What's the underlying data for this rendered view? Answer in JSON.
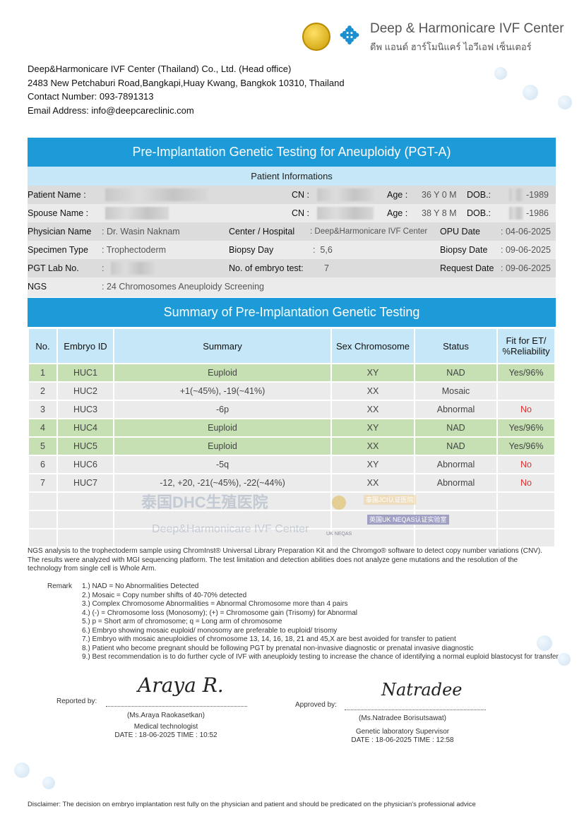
{
  "header": {
    "logo_en": "Deep & Harmonicare IVF Center",
    "logo_th": "ดีพ แอนด์ ฮาร์โมนิแคร์ ไอวีเอฟ เซ็นเตอร์",
    "address_lines": [
      "Deep&Harmonicare IVF Center (Thailand) Co., Ltd. (Head office)",
      "2483 New Petchaburi Road,Bangkapi,Huay Kwang, Bangkok 10310, Thailand",
      "Contact Number: 093-7891313",
      "Email Address: info@deepcareclinic.com"
    ]
  },
  "title": "Pre-Implantation Genetic Testing for Aneuploidy (PGT-A)",
  "patient_info": {
    "heading": "Patient Informations",
    "patient_name_label": "Patient Name :",
    "cn_label": "CN :",
    "age_label": "Age :",
    "dob_label": "DOB.:",
    "patient_age": "36 Y 0 M",
    "patient_dob": "-1989",
    "spouse_name_label": "Spouse Name :",
    "spouse_age": "38 Y 8 M",
    "spouse_dob": "-1986",
    "physician_label": "Physician Name",
    "physician": "Dr. Wasin Naknam",
    "center_label": "Center / Hospital",
    "center": "Deep&Harmonicare IVF Center",
    "opu_label": "OPU Date",
    "opu": "04-06-2025",
    "specimen_label": "Specimen Type",
    "specimen": "Trophectoderm",
    "biopsy_day_label": "Biopsy Day",
    "biopsy_day": "5,6",
    "biopsy_date_label": "Biopsy Date",
    "biopsy_date": "09-06-2025",
    "lab_label": "PGT Lab No.",
    "embryo_count_label": "No. of embryo test:",
    "embryo_count": "7",
    "request_label": "Request Date",
    "request_date": "09-06-2025",
    "ngs_label": "NGS",
    "ngs": "24 Chromosomes Aneuploidy Screening"
  },
  "summary": {
    "heading": "Summary of Pre-Implantation Genetic Testing",
    "columns": [
      "No.",
      "Embryo ID",
      "Summary",
      "Sex Chromosome",
      "Status",
      "Fit for ET/",
      "%Reliability"
    ],
    "rows": [
      {
        "no": "1",
        "id": "HUC1",
        "summary": "Euploid",
        "sex": "XY",
        "status": "NAD",
        "fit": "Yes/96%",
        "tone": "green"
      },
      {
        "no": "2",
        "id": "HUC2",
        "summary": "+1(~45%), -19(~41%)",
        "sex": "XX",
        "status": "Mosaic",
        "fit": "",
        "tone": "grey"
      },
      {
        "no": "3",
        "id": "HUC3",
        "summary": "-6p",
        "sex": "XX",
        "status": "Abnormal",
        "fit": "No",
        "tone": "grey"
      },
      {
        "no": "4",
        "id": "HUC4",
        "summary": "Euploid",
        "sex": "XY",
        "status": "NAD",
        "fit": "Yes/96%",
        "tone": "green"
      },
      {
        "no": "5",
        "id": "HUC5",
        "summary": "Euploid",
        "sex": "XX",
        "status": "NAD",
        "fit": "Yes/96%",
        "tone": "green"
      },
      {
        "no": "6",
        "id": "HUC6",
        "summary": "-5q",
        "sex": "XY",
        "status": "Abnormal",
        "fit": "No",
        "tone": "grey"
      },
      {
        "no": "7",
        "id": "HUC7",
        "summary": "-12, +20, -21(~45%), -22(~44%)",
        "sex": "XX",
        "status": "Abnormal",
        "fit": "No",
        "tone": "grey"
      }
    ],
    "empty_rows": 3
  },
  "colors": {
    "banner": "#1c9bd8",
    "header_light": "#c6e7f7",
    "euploid_row": "#c6e0b4",
    "grey_row": "#ebebeb",
    "no_text": "#dd3333"
  },
  "note": "NGS analysis to the trophectoderm sample using ChromInst® Universal Library Preparation Kit and the Chromgo® software to detect copy number variations (CNV). The results were analyzed with MGI sequencing platform. The test limitation and detection abilities does not analyze gene mutations and the resolution of the technology from single cell is Whole Arm.",
  "remark_label": "Remark",
  "remarks": [
    "1.) NAD = No Abnormalities Detected",
    "2.) Mosaic = Copy number shifts of 40-70% detected",
    "3.) Complex Chromosome Abnormalities = Abnormal Chromosome more than 4 pairs",
    "4.) (-) = Chromosome loss (Monosomy); (+) = Chromosome gain (Trisomy) for Abnormal",
    "5.) p = Short arm of chromosome; q = Long arm of chromosome",
    "6.) Embryo showing mosaic euploid/ monosomy are preferable to euploid/ trisomy",
    "7.) Embryo with mosaic aneuploidies of chromosome 13, 14, 16, 18, 21 and 45,X are best avoided for transfer to patient",
    "8.) Patient who become pregnant should be following PGT by prenatal non-invasive diagnostic or prenatal invasive diagnostic",
    "9.) Best recommendation is to do further cycle of IVF with aneuploidy testing to increase the chance of identifying a normal euploid blastocyst for transfer"
  ],
  "signatures": {
    "reported_label": "Reported by:",
    "reporter_signature": "Araya R.",
    "reporter": "(Ms.Araya Raokasetkan)",
    "reporter_role": "Medical technologist",
    "reporter_date": "DATE : 18-06-2025 TIME : 10:52",
    "approved_label": "Approved by:",
    "approver_signature": "Natradee",
    "approver": "(Ms.Natradee Borisutsawat)",
    "approver_role": "Genetic laboratory Supervisor",
    "approver_date": "DATE : 18-06-2025 TIME : 12:58"
  },
  "watermarks": {
    "cn": "泰国DHC生殖医院",
    "en": "Deep&Harmonicare IVF Center",
    "jci": "泰国JCI认证医院",
    "neqas": "英国UK NEQAS认证实验室",
    "neqas_logo": "UK NEQAS"
  },
  "disclaimer": "Disclaimer: The decision on embryo implantation rest fully on the physician and patient and should be predicated on the physician's professional advice"
}
